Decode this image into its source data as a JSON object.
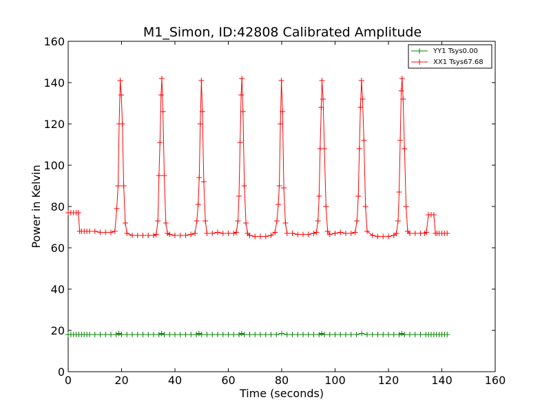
{
  "chart_data": {
    "type": "line",
    "title": "M1_Simon, ID:42808 Calibrated Amplitude",
    "xlabel": "Time (seconds)",
    "ylabel": "Power in Kelvin",
    "xlim": [
      0,
      160
    ],
    "ylim": [
      0,
      160
    ],
    "xticks": [
      0,
      20,
      40,
      60,
      80,
      100,
      120,
      140,
      160
    ],
    "yticks": [
      0,
      20,
      40,
      60,
      80,
      100,
      120,
      140,
      160
    ],
    "legend_position": "top-right",
    "grid": false,
    "marker": "+",
    "series": [
      {
        "name": "YY1 Tsys0.00",
        "color": "#008000",
        "x": [
          0,
          1,
          2,
          3,
          4,
          5,
          6,
          7,
          8,
          10,
          12,
          14,
          16,
          18,
          19,
          20,
          22,
          24,
          26,
          28,
          30,
          32,
          34,
          35,
          36,
          38,
          40,
          42,
          44,
          46,
          48,
          49,
          50,
          52,
          54,
          56,
          58,
          60,
          62,
          64,
          65,
          66,
          68,
          70,
          72,
          74,
          76,
          78,
          80,
          82,
          84,
          86,
          88,
          90,
          92,
          94,
          95,
          96,
          98,
          100,
          102,
          104,
          106,
          108,
          110,
          112,
          114,
          116,
          118,
          120,
          122,
          124,
          125,
          126,
          128,
          130,
          132,
          134,
          135,
          136,
          137,
          138,
          139,
          140,
          141,
          142
        ],
        "y": [
          18,
          18,
          18,
          18,
          18,
          18,
          18,
          18,
          18,
          18,
          18,
          18,
          18,
          18,
          18.5,
          18,
          18,
          18,
          18,
          18,
          18,
          18,
          18,
          18.5,
          18,
          18,
          18,
          18,
          18,
          18,
          18,
          18.5,
          18,
          18,
          18,
          18,
          18,
          18,
          18,
          18,
          18.5,
          18,
          18,
          18,
          18,
          18,
          18,
          18,
          18.5,
          18,
          18,
          18,
          18,
          18,
          18,
          18,
          18.5,
          18,
          18,
          18,
          18,
          18,
          18,
          18,
          18.5,
          18,
          18,
          18,
          18,
          18,
          18,
          18,
          18.5,
          18,
          18,
          18,
          18,
          18,
          18,
          18,
          18,
          18,
          18,
          18,
          18,
          18
        ]
      },
      {
        "name": "XX1 Tsys67.68",
        "color": "#ff0000",
        "x": [
          0,
          1,
          2,
          3,
          3.8,
          4.3,
          5,
          6,
          7,
          8,
          10,
          12,
          14,
          16,
          17.5,
          18.2,
          18.7,
          19.1,
          19.5,
          19.9,
          20.3,
          20.8,
          21.4,
          22,
          24,
          26,
          28,
          30,
          32,
          33,
          33.6,
          34,
          34.4,
          34.8,
          35.1,
          35.5,
          36,
          36.6,
          37.2,
          38,
          40,
          42,
          44,
          46,
          47.5,
          48.2,
          48.7,
          49.1,
          49.5,
          49.9,
          50.3,
          50.8,
          51.4,
          52,
          54,
          56,
          58,
          60,
          62,
          63,
          63.6,
          64,
          64.4,
          64.8,
          65.1,
          65.5,
          66,
          66.6,
          67.2,
          68,
          70,
          72,
          74,
          76,
          77.5,
          78.2,
          78.7,
          79.1,
          79.5,
          79.9,
          80.3,
          80.8,
          81.4,
          82,
          84,
          86,
          88,
          90,
          92,
          93,
          93.6,
          94,
          94.4,
          94.8,
          95.1,
          95.5,
          96,
          96.6,
          97.2,
          98,
          100,
          102,
          104,
          106,
          107.5,
          108.2,
          108.7,
          109.1,
          109.5,
          109.9,
          110.3,
          110.8,
          111.4,
          112,
          114,
          116,
          118,
          120,
          122,
          123,
          123.6,
          124,
          124.4,
          124.8,
          125.1,
          125.5,
          126,
          126.6,
          127.2,
          128,
          130,
          132,
          133.5,
          134.2,
          135,
          136,
          137,
          137.6,
          138.2,
          139,
          140,
          141,
          142
        ],
        "y": [
          77,
          77,
          77,
          77,
          77,
          68,
          68,
          68,
          68,
          68,
          68,
          67.5,
          67.5,
          67.5,
          68,
          79,
          90,
          120,
          141,
          134,
          120,
          90,
          72,
          67,
          66,
          66,
          66,
          66,
          66,
          66.5,
          73,
          95,
          111,
          134,
          142,
          126,
          95,
          72,
          67,
          66.5,
          66,
          66,
          66,
          66.5,
          67,
          73,
          81,
          94,
          120,
          141,
          126,
          92,
          73,
          67,
          67,
          67.5,
          67,
          67,
          67,
          67.5,
          73,
          85,
          111,
          134,
          142,
          126,
          90,
          72,
          67,
          66,
          65.5,
          65.5,
          65.5,
          66,
          67.5,
          73,
          81,
          90,
          120,
          141,
          126,
          89,
          72,
          67,
          67,
          66.5,
          66.5,
          66.5,
          67,
          67.5,
          73,
          85,
          108,
          128,
          141,
          132,
          108,
          80,
          68,
          66.5,
          67,
          67.5,
          67,
          67,
          67.5,
          73,
          85,
          108,
          128,
          141,
          132,
          112,
          80,
          68,
          66,
          65.5,
          65.5,
          65.5,
          66,
          67,
          73,
          87,
          112,
          136,
          142,
          132,
          108,
          80,
          68,
          67,
          67,
          67,
          67,
          67.5,
          76,
          76,
          76,
          67,
          67,
          67,
          67,
          67,
          67
        ]
      }
    ]
  }
}
